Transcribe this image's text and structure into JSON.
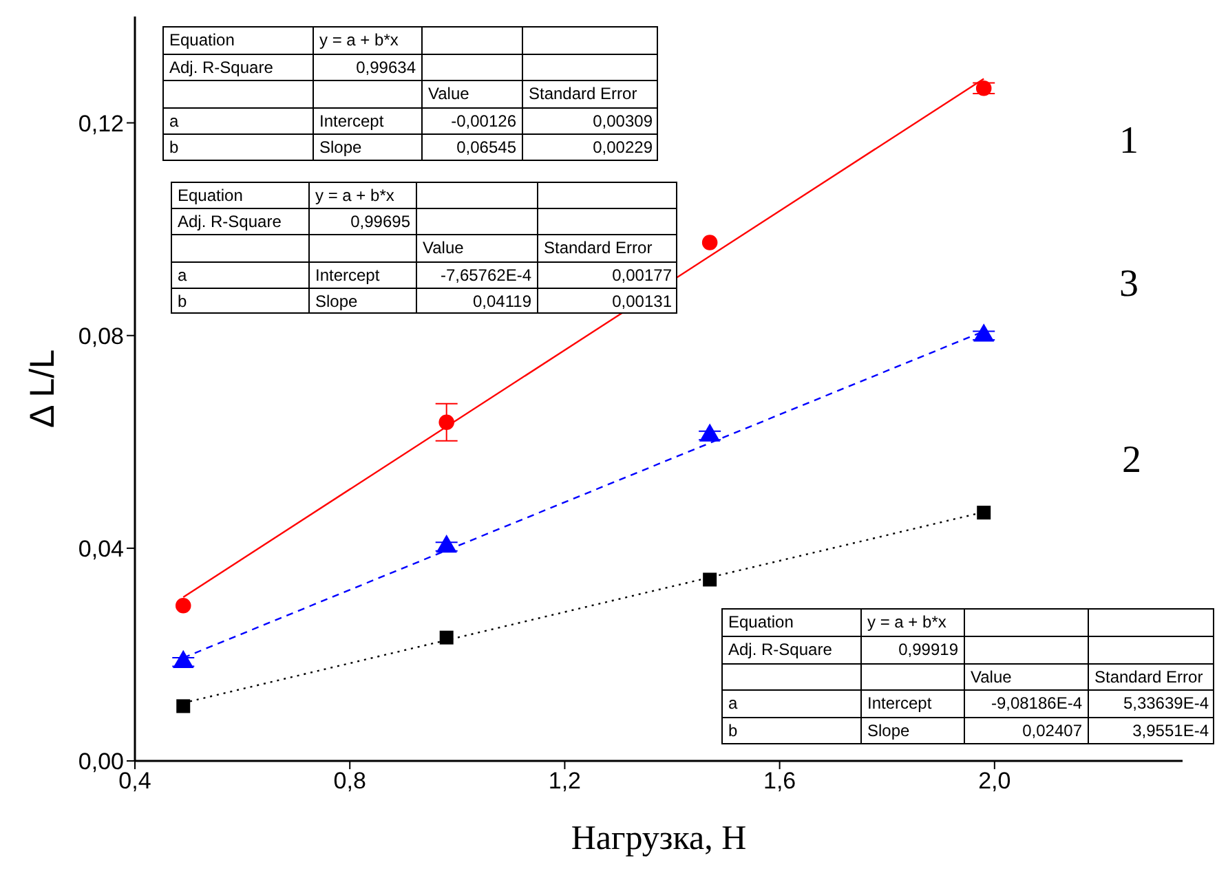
{
  "chart_data": {
    "type": "scatter",
    "xlabel": "Нагрузка, Н",
    "ylabel": "Δ L/L",
    "xlim": [
      0.4,
      2.35
    ],
    "ylim": [
      0,
      0.14
    ],
    "xticks": [
      {
        "value": 0.4,
        "label": "0,4"
      },
      {
        "value": 0.8,
        "label": "0,8"
      },
      {
        "value": 1.2,
        "label": "1,2"
      },
      {
        "value": 1.6,
        "label": "1,6"
      },
      {
        "value": 2.0,
        "label": "2,0"
      }
    ],
    "yticks": [
      {
        "value": 0,
        "label": "0,00"
      },
      {
        "value": 0.04,
        "label": "0,04"
      },
      {
        "value": 0.08,
        "label": "0,08"
      },
      {
        "value": 0.12,
        "label": "0,12"
      }
    ],
    "series": [
      {
        "type": "scatter",
        "color": "#ff0000",
        "marker": "circle",
        "x": [
          0.49,
          0.98,
          1.47,
          1.98
        ],
        "values": [
          0.0292,
          0.0637,
          0.0975,
          0.1265
        ],
        "errors": [
          null,
          0.0035,
          null,
          0.001
        ]
      },
      {
        "type": "line",
        "color": "#ff0000",
        "line_style": "solid",
        "x": [
          0.49,
          1.98
        ],
        "values": [
          0.0308,
          0.1283
        ]
      },
      {
        "type": "scatter",
        "color": "#0000ff",
        "marker": "triangle",
        "x": [
          0.49,
          0.98,
          1.47,
          1.98
        ],
        "values": [
          0.0186,
          0.0403,
          0.0612,
          0.08
        ],
        "errors": [
          0.0008,
          0.0008,
          0.0008,
          0.0008
        ]
      },
      {
        "type": "line",
        "color": "#0000ff",
        "line_style": "dashed",
        "x": [
          0.49,
          1.98
        ],
        "values": [
          0.0194,
          0.0808
        ]
      },
      {
        "type": "scatter",
        "color": "#000000",
        "marker": "square",
        "x": [
          0.49,
          0.98,
          1.47,
          1.98
        ],
        "values": [
          0.0103,
          0.0232,
          0.0341,
          0.0467
        ]
      },
      {
        "type": "line",
        "color": "#000000",
        "line_style": "dotted",
        "x": [
          0.49,
          1.98
        ],
        "values": [
          0.0109,
          0.0468
        ]
      }
    ],
    "annotations": [
      "1",
      "3",
      "2",
      "Equation",
      "y = a + b*x",
      "Adj. R-Square",
      "0,99634",
      "Value",
      "Standard Error",
      "a",
      "Intercept",
      "-0,00126",
      "0,00309",
      "b",
      "Slope",
      "0,06545",
      "0,00229",
      "Equation",
      "y = a + b*x",
      "Adj. R-Square",
      "0,99695",
      "Value",
      "Standard Error",
      "a",
      "Intercept",
      "-7,65762E-4",
      "0,00177",
      "b",
      "Slope",
      "0,04119",
      "0,00131",
      "Equation",
      "y = a + b*x",
      "Adj. R-Square",
      "0,99919",
      "Value",
      "Standard Error",
      "a",
      "Intercept",
      "-9,08186E-4",
      "5,33639E-4",
      "b",
      "Slope",
      "0,02407",
      "3,9551E-4"
    ]
  }
}
